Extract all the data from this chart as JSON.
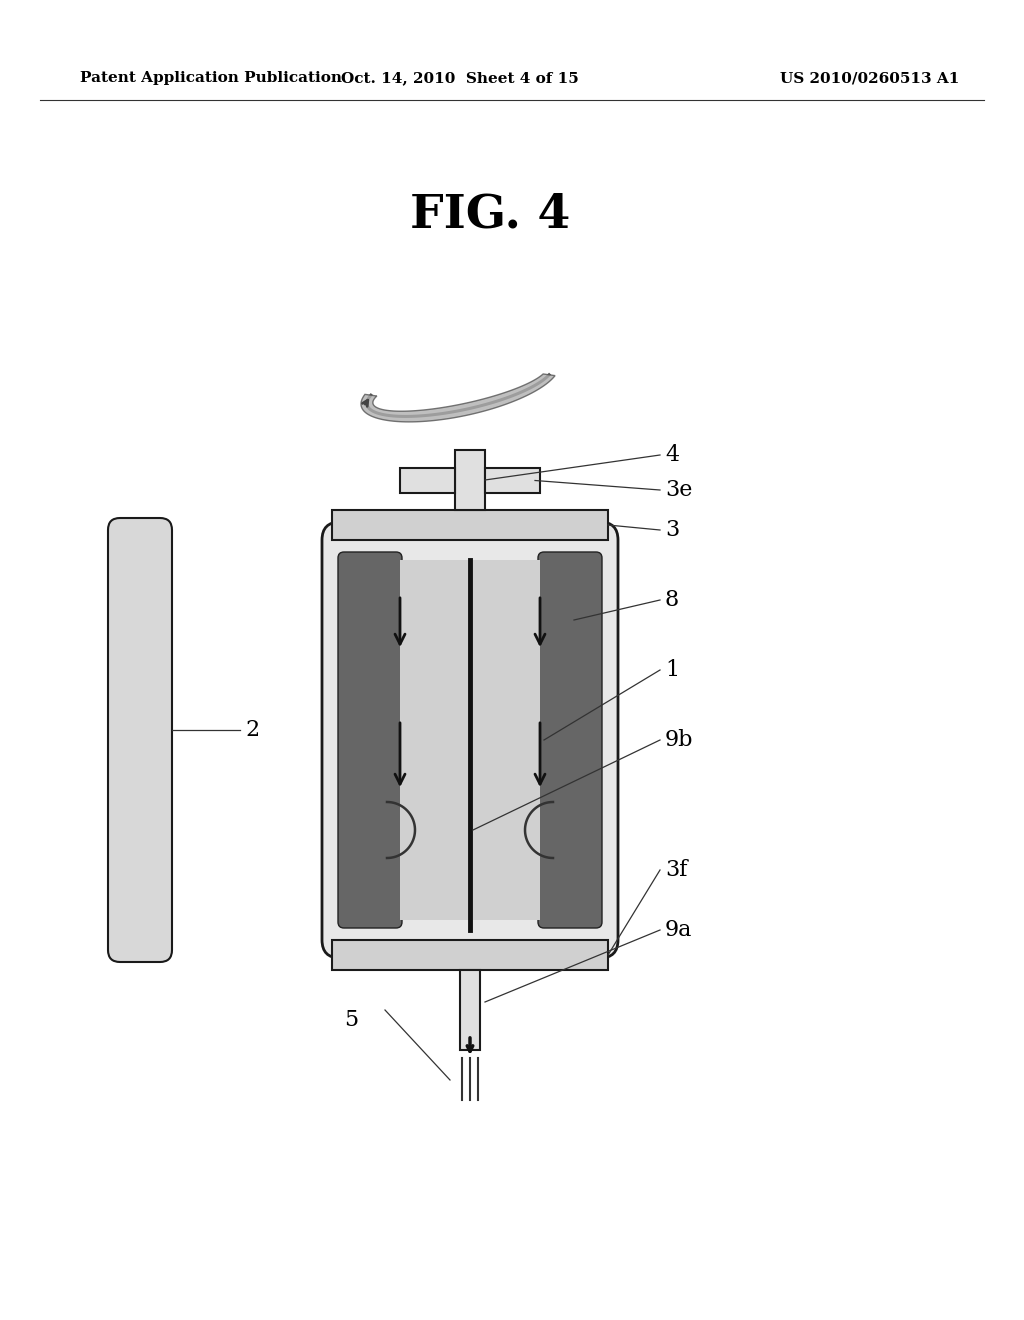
{
  "background_color": "#ffffff",
  "header_left": "Patent Application Publication",
  "header_center": "Oct. 14, 2010  Sheet 4 of 15",
  "header_right": "US 2010/0260513 A1",
  "title": "FIG. 4",
  "colors": {
    "outer_shell": "#1a1a1a",
    "dark_band": "#505050",
    "light_gray": "#d8d8d8",
    "cap_fill": "#c8c8c8",
    "shaft_fill": "#e0e0e0",
    "inner_fill": "#d0d0d0",
    "line_color": "#333333",
    "arrow_color": "#111111",
    "rod_fill": "#d8d8d8",
    "rotation_color": "#555555"
  }
}
